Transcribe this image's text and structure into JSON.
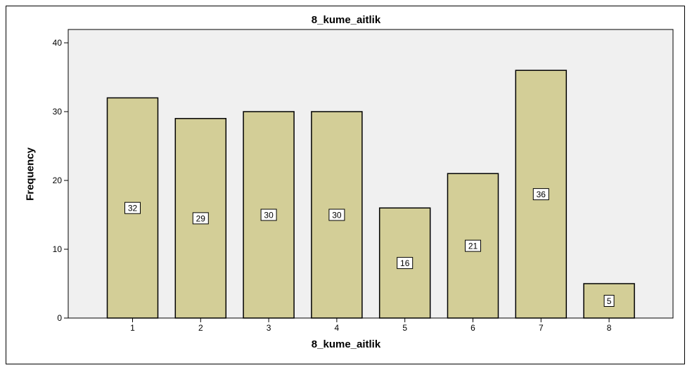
{
  "chart_data": {
    "type": "bar",
    "title": "8_kume_aitlik",
    "xlabel": "8_kume_aitlik",
    "ylabel": "Frequency",
    "categories": [
      "1",
      "2",
      "3",
      "4",
      "5",
      "6",
      "7",
      "8"
    ],
    "values": [
      32,
      29,
      30,
      30,
      16,
      21,
      36,
      5
    ],
    "ylim": [
      0,
      40
    ],
    "yticks": [
      "0",
      "10",
      "20",
      "30",
      "40"
    ],
    "grid": false,
    "legend": "none",
    "colors": {
      "bar": "#d3ce97",
      "bar_border": "#000000",
      "plot_bg": "#f0f0f0"
    }
  }
}
